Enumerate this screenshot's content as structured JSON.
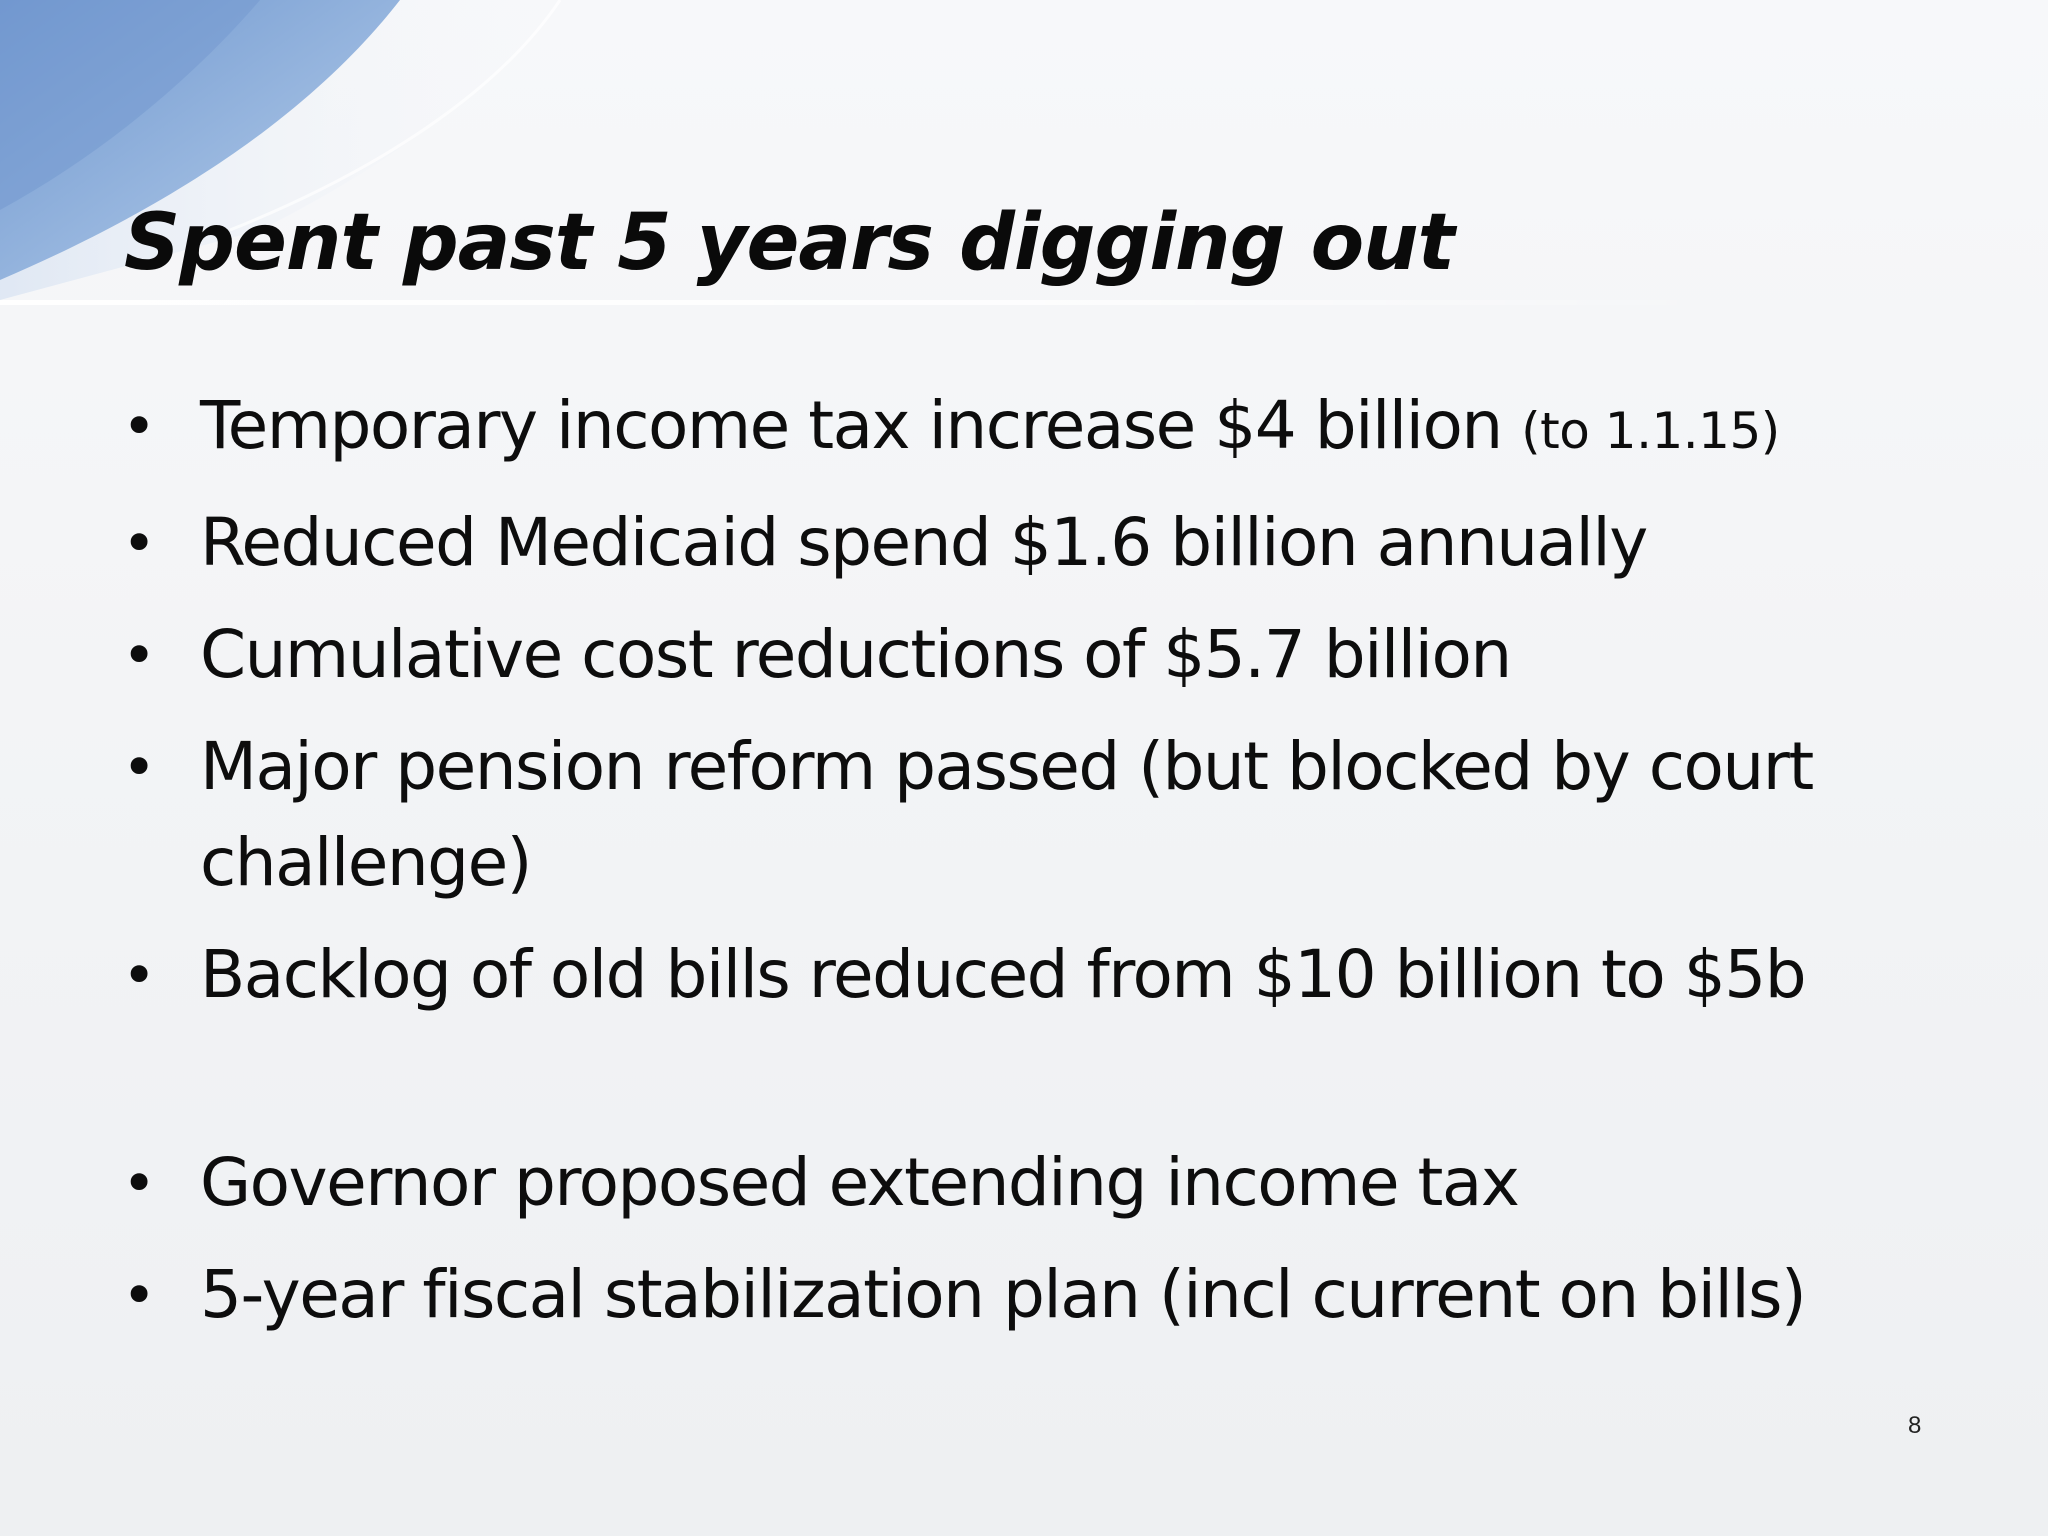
{
  "slide": {
    "title": "Spent past 5 years digging out",
    "bullets": [
      {
        "text": "Temporary income tax increase $4 billion",
        "note": "(to 1.1.15)"
      },
      {
        "text": "Reduced Medicaid spend $1.6 billion annually"
      },
      {
        "text": "Cumulative cost reductions of $5.7 billion"
      },
      {
        "text": "Major pension reform passed (but blocked by court challenge)"
      },
      {
        "text": "Backlog of old bills reduced from $10 billion to $5b"
      },
      {
        "text": "Governor proposed extending income tax"
      },
      {
        "text": "5-year fiscal stabilization plan (incl current on bills)"
      }
    ],
    "bullet_glyph": "•",
    "page_number": "8"
  },
  "colors": {
    "background": "#f3f4f6",
    "accent_blue": "#7ea3d6",
    "text": "#0d0d0d"
  }
}
